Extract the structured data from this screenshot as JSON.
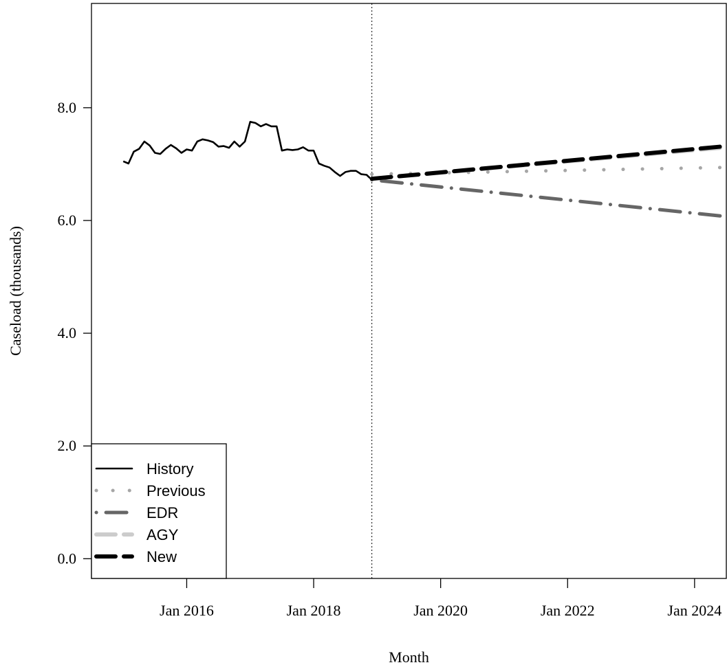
{
  "chart_data": {
    "type": "line",
    "title": "",
    "xlabel": "Month",
    "ylabel": "Caseload (thousands)",
    "xlim": [
      "2014-07",
      "2024-07"
    ],
    "ylim": [
      -0.35,
      9.85
    ],
    "x_ticks": [
      {
        "date": "2016-01",
        "label": "Jan 2016"
      },
      {
        "date": "2018-01",
        "label": "Jan 2018"
      },
      {
        "date": "2020-01",
        "label": "Jan 2020"
      },
      {
        "date": "2022-01",
        "label": "Jan 2022"
      },
      {
        "date": "2024-01",
        "label": "Jan 2024"
      }
    ],
    "y_ticks": [
      {
        "value": 0,
        "label": "0.0"
      },
      {
        "value": 2,
        "label": "2.0"
      },
      {
        "value": 4,
        "label": "4.0"
      },
      {
        "value": 6,
        "label": "6.0"
      },
      {
        "value": 8,
        "label": "8.0"
      }
    ],
    "forecast_start": "2018-12",
    "legend_position": "bottom-left",
    "series": [
      {
        "name": "History",
        "color": "#000000",
        "style": "solid",
        "x": [
          "2015-01",
          "2015-02",
          "2015-03",
          "2015-04",
          "2015-05",
          "2015-06",
          "2015-07",
          "2015-08",
          "2015-09",
          "2015-10",
          "2015-11",
          "2015-12",
          "2016-01",
          "2016-02",
          "2016-03",
          "2016-04",
          "2016-05",
          "2016-06",
          "2016-07",
          "2016-08",
          "2016-09",
          "2016-10",
          "2016-11",
          "2016-12",
          "2017-01",
          "2017-02",
          "2017-03",
          "2017-04",
          "2017-05",
          "2017-06",
          "2017-07",
          "2017-08",
          "2017-09",
          "2017-10",
          "2017-11",
          "2017-12",
          "2018-01",
          "2018-02",
          "2018-03",
          "2018-04",
          "2018-05",
          "2018-06",
          "2018-07",
          "2018-08",
          "2018-09",
          "2018-10",
          "2018-11",
          "2018-12"
        ],
        "values": [
          7.05,
          7.01,
          7.22,
          7.27,
          7.4,
          7.33,
          7.2,
          7.18,
          7.27,
          7.34,
          7.28,
          7.2,
          7.26,
          7.24,
          7.4,
          7.44,
          7.42,
          7.39,
          7.31,
          7.32,
          7.29,
          7.4,
          7.31,
          7.4,
          7.75,
          7.73,
          7.67,
          7.71,
          7.67,
          7.67,
          7.24,
          7.26,
          7.25,
          7.26,
          7.3,
          7.24,
          7.24,
          7.01,
          6.97,
          6.94,
          6.86,
          6.79,
          6.86,
          6.88,
          6.88,
          6.82,
          6.81,
          6.72
        ]
      },
      {
        "name": "Previous",
        "color": "#a6a6a6",
        "style": "dotted",
        "x": [
          "2018-12",
          "2024-06"
        ],
        "values": [
          6.82,
          6.94
        ]
      },
      {
        "name": "EDR",
        "color": "#666666",
        "style": "dotdash",
        "x": [
          "2018-12",
          "2024-06"
        ],
        "values": [
          6.72,
          6.08
        ]
      },
      {
        "name": "AGY",
        "color": "#cccccc",
        "style": "dashed",
        "x": [
          "2018-12",
          "2024-06"
        ],
        "values": [
          6.74,
          7.29
        ]
      },
      {
        "name": "New",
        "color": "#000000",
        "style": "dashed",
        "x": [
          "2018-12",
          "2024-06"
        ],
        "values": [
          6.74,
          7.31
        ]
      }
    ]
  }
}
